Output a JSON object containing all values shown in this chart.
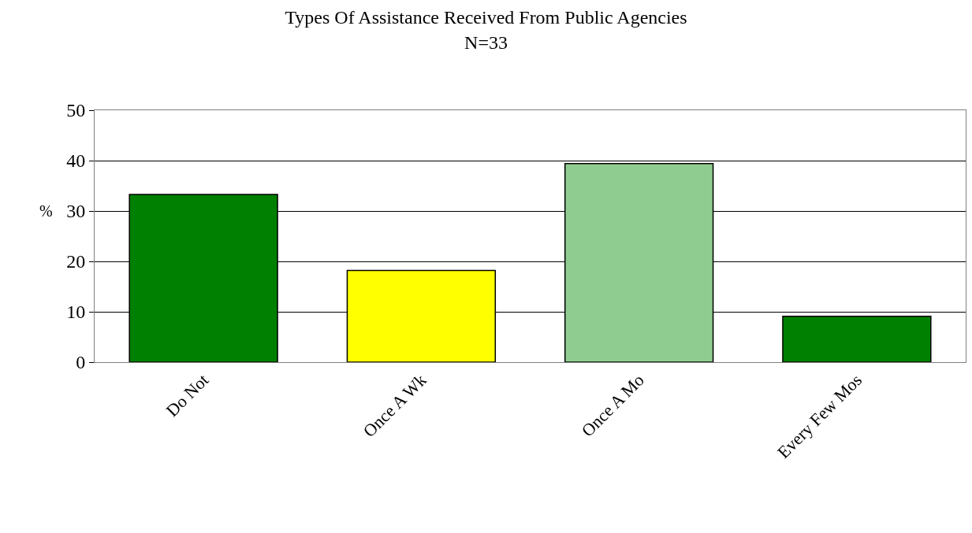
{
  "chart_data": {
    "type": "bar",
    "title": "Types Of Assistance Received From Public Agencies",
    "subtitle": "N=33",
    "ylabel": "%",
    "categories": [
      "Do Not",
      "Once A Wk",
      "Once A Mo",
      "Every Few Mos"
    ],
    "values": [
      33.3,
      18.2,
      39.4,
      9.1
    ],
    "colors": [
      "#008000",
      "#ffff00",
      "#8fcc8f",
      "#008000"
    ],
    "ylim": [
      0,
      50
    ],
    "yticks": [
      0,
      10,
      20,
      30,
      40,
      50
    ],
    "grid": "y"
  }
}
